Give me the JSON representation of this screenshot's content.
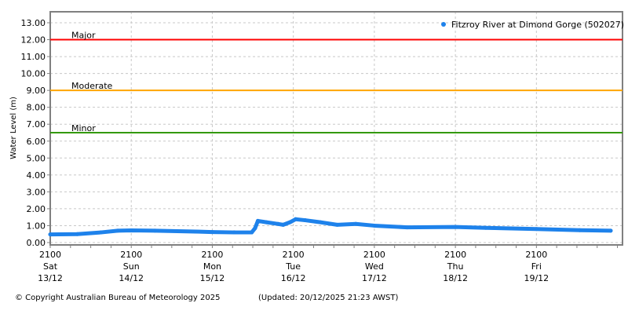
{
  "chart_data": {
    "type": "line",
    "title": "",
    "xlabel": "",
    "ylabel": "Water Level (m)",
    "ylim": [
      -0.14,
      13.65
    ],
    "xlim": [
      "13/12 21:00",
      "20/12 22:30"
    ],
    "grid": true,
    "legend_position": "top-right",
    "y_ticks": [
      "0.00",
      "1.00",
      "2.00",
      "3.00",
      "4.00",
      "5.00",
      "6.00",
      "7.00",
      "8.00",
      "9.00",
      "10.00",
      "11.00",
      "12.00",
      "13.00"
    ],
    "x_ticks": [
      {
        "at": "13/12 21:00",
        "time": "2100",
        "day": "Sat",
        "date": "13/12"
      },
      {
        "at": "14/12 21:00",
        "time": "2100",
        "day": "Sun",
        "date": "14/12"
      },
      {
        "at": "15/12 21:00",
        "time": "2100",
        "day": "Mon",
        "date": "15/12"
      },
      {
        "at": "16/12 21:00",
        "time": "2100",
        "day": "Tue",
        "date": "16/12"
      },
      {
        "at": "17/12 21:00",
        "time": "2100",
        "day": "Wed",
        "date": "17/12"
      },
      {
        "at": "18/12 21:00",
        "time": "2100",
        "day": "Thu",
        "date": "18/12"
      },
      {
        "at": "19/12 21:00",
        "time": "2100",
        "day": "Fri",
        "date": "19/12"
      }
    ],
    "thresholds": [
      {
        "label": "Major",
        "value": 12.0,
        "color": "#ff0000"
      },
      {
        "label": "Moderate",
        "value": 9.0,
        "color": "#ffa500"
      },
      {
        "label": "Minor",
        "value": 6.5,
        "color": "#339900"
      }
    ],
    "series": [
      {
        "name": "Fitzroy River at Dimond Gorge (502027)",
        "color": "#1e82eb",
        "x": [
          "13/12 21:00",
          "14/12 05:00",
          "14/12 12:00",
          "14/12 17:00",
          "14/12 21:00",
          "15/12 04:00",
          "15/12 16:00",
          "15/12 21:00",
          "16/12 03:30",
          "16/12 08:40",
          "16/12 09:40",
          "16/12 10:30",
          "16/12 13:00",
          "16/12 16:30",
          "16/12 18:00",
          "16/12 20:00",
          "16/12 21:40",
          "17/12 00:30",
          "17/12 05:00",
          "17/12 10:00",
          "17/12 15:30",
          "17/12 21:00",
          "18/12 06:40",
          "18/12 21:00",
          "19/12 06:00",
          "19/12 21:00",
          "20/12 09:50",
          "20/12 19:00"
        ],
        "values": [
          0.48,
          0.5,
          0.6,
          0.7,
          0.72,
          0.7,
          0.65,
          0.62,
          0.6,
          0.6,
          0.85,
          1.28,
          1.2,
          1.1,
          1.05,
          1.2,
          1.38,
          1.32,
          1.2,
          1.05,
          1.1,
          1.0,
          0.9,
          0.92,
          0.87,
          0.8,
          0.73,
          0.7
        ]
      }
    ]
  },
  "footer": {
    "copyright": "© Copyright Australian Bureau of Meteorology 2025",
    "updated": "(Updated: 20/12/2025 21:23 AWST)"
  }
}
